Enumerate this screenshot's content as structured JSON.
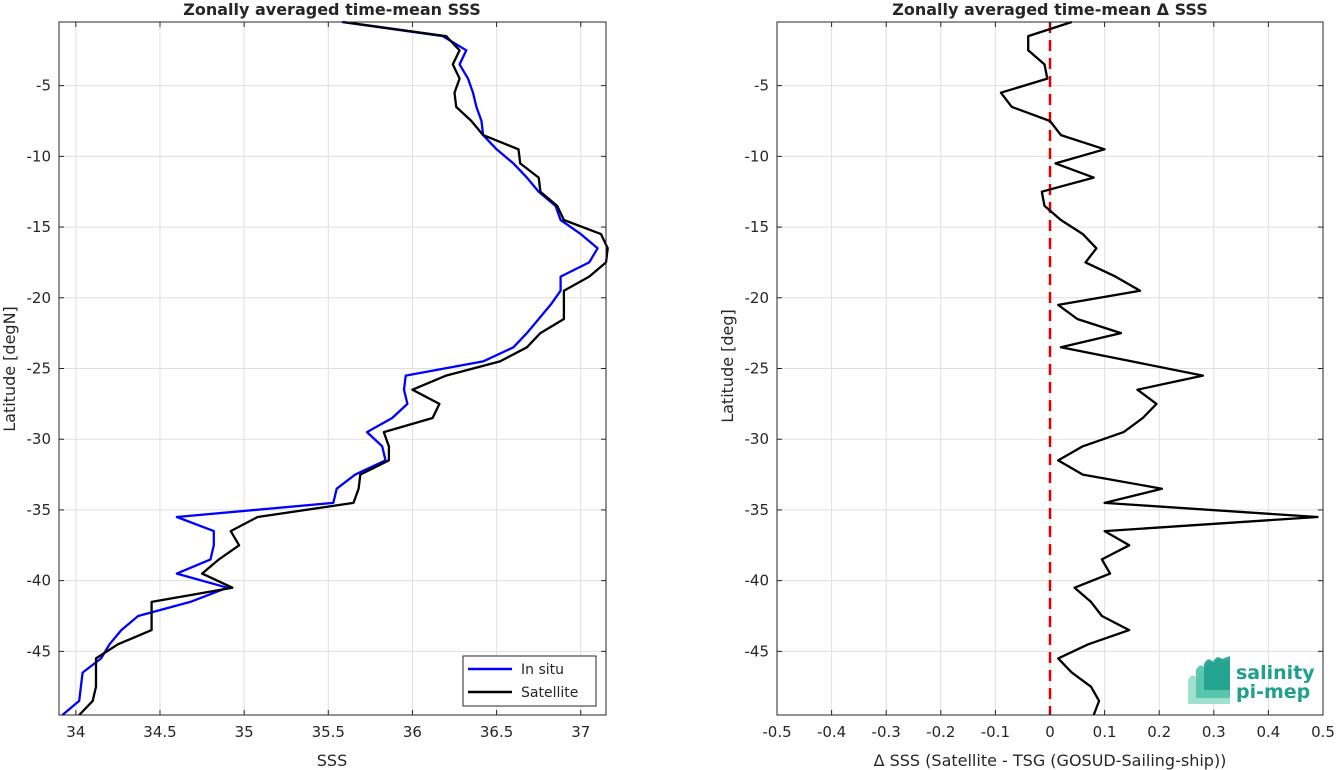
{
  "chart_data": [
    {
      "type": "line",
      "title": "Zonally averaged time-mean SSS",
      "xlabel": "SSS",
      "ylabel": "Latitude [degN]",
      "xlim": [
        33.9,
        37.15
      ],
      "ylim": [
        -49.5,
        -0.5
      ],
      "xticks": [
        34,
        34.5,
        35,
        35.5,
        36,
        36.5,
        37
      ],
      "xticklabels": [
        "34",
        "34.5",
        "35",
        "35.5",
        "36",
        "36.5",
        "37"
      ],
      "yticks": [
        -5,
        -10,
        -15,
        -20,
        -25,
        -30,
        -35,
        -40,
        -45
      ],
      "yticklabels": [
        "-5",
        "-10",
        "-15",
        "-20",
        "-25",
        "-30",
        "-35",
        "-40",
        "-45"
      ],
      "grid": true,
      "legend_position": "bottom-right",
      "series": [
        {
          "name": "In situ",
          "color": "#0000ff",
          "points": [
            [
              35.58,
              -0.5
            ],
            [
              36.18,
              -1.5
            ],
            [
              36.32,
              -2.5
            ],
            [
              36.28,
              -3.5
            ],
            [
              36.33,
              -4.5
            ],
            [
              36.36,
              -5.5
            ],
            [
              36.38,
              -6.5
            ],
            [
              36.41,
              -7.5
            ],
            [
              36.42,
              -8.5
            ],
            [
              36.5,
              -9.5
            ],
            [
              36.6,
              -10.5
            ],
            [
              36.68,
              -11.5
            ],
            [
              36.75,
              -12.5
            ],
            [
              36.85,
              -13.5
            ],
            [
              36.88,
              -14.5
            ],
            [
              37.0,
              -15.5
            ],
            [
              37.1,
              -16.5
            ],
            [
              37.05,
              -17.5
            ],
            [
              36.88,
              -18.5
            ],
            [
              36.88,
              -19.5
            ],
            [
              36.82,
              -20.5
            ],
            [
              36.75,
              -21.5
            ],
            [
              36.68,
              -22.5
            ],
            [
              36.6,
              -23.5
            ],
            [
              36.42,
              -24.5
            ],
            [
              35.96,
              -25.5
            ],
            [
              35.95,
              -26.5
            ],
            [
              35.97,
              -27.5
            ],
            [
              35.88,
              -28.5
            ],
            [
              35.73,
              -29.5
            ],
            [
              35.82,
              -30.5
            ],
            [
              35.84,
              -31.5
            ],
            [
              35.66,
              -32.5
            ],
            [
              35.55,
              -33.5
            ],
            [
              35.53,
              -34.5
            ],
            [
              34.6,
              -35.5
            ],
            [
              34.82,
              -36.5
            ],
            [
              34.82,
              -37.5
            ],
            [
              34.8,
              -38.5
            ],
            [
              34.6,
              -39.5
            ],
            [
              34.9,
              -40.5
            ],
            [
              34.68,
              -41.5
            ],
            [
              34.37,
              -42.5
            ],
            [
              34.27,
              -43.5
            ],
            [
              34.2,
              -44.5
            ],
            [
              34.15,
              -45.5
            ],
            [
              34.04,
              -46.5
            ],
            [
              34.03,
              -47.5
            ],
            [
              34.02,
              -48.5
            ],
            [
              33.92,
              -49.5
            ]
          ]
        },
        {
          "name": "Satellite",
          "color": "#000000",
          "points": [
            [
              35.59,
              -0.5
            ],
            [
              36.2,
              -1.5
            ],
            [
              36.28,
              -2.5
            ],
            [
              36.24,
              -3.5
            ],
            [
              36.28,
              -4.5
            ],
            [
              36.25,
              -5.5
            ],
            [
              36.26,
              -6.5
            ],
            [
              36.35,
              -7.5
            ],
            [
              36.42,
              -8.5
            ],
            [
              36.63,
              -9.5
            ],
            [
              36.64,
              -10.5
            ],
            [
              36.75,
              -11.5
            ],
            [
              36.76,
              -12.5
            ],
            [
              36.86,
              -13.5
            ],
            [
              36.9,
              -14.5
            ],
            [
              37.12,
              -15.5
            ],
            [
              37.16,
              -16.5
            ],
            [
              37.15,
              -17.5
            ],
            [
              37.05,
              -18.5
            ],
            [
              36.9,
              -19.5
            ],
            [
              36.9,
              -20.5
            ],
            [
              36.9,
              -21.5
            ],
            [
              36.76,
              -22.5
            ],
            [
              36.68,
              -23.5
            ],
            [
              36.52,
              -24.5
            ],
            [
              36.2,
              -25.5
            ],
            [
              36.0,
              -26.5
            ],
            [
              36.16,
              -27.5
            ],
            [
              36.12,
              -28.5
            ],
            [
              35.83,
              -29.5
            ],
            [
              35.86,
              -30.5
            ],
            [
              35.86,
              -31.5
            ],
            [
              35.69,
              -32.5
            ],
            [
              35.68,
              -33.5
            ],
            [
              35.65,
              -34.5
            ],
            [
              35.08,
              -35.5
            ],
            [
              34.92,
              -36.5
            ],
            [
              34.97,
              -37.5
            ],
            [
              34.85,
              -38.5
            ],
            [
              34.75,
              -39.5
            ],
            [
              34.93,
              -40.5
            ],
            [
              34.45,
              -41.5
            ],
            [
              34.45,
              -42.5
            ],
            [
              34.45,
              -43.5
            ],
            [
              34.25,
              -44.5
            ],
            [
              34.12,
              -45.5
            ],
            [
              34.12,
              -46.5
            ],
            [
              34.12,
              -47.5
            ],
            [
              34.1,
              -48.5
            ],
            [
              34.02,
              -49.5
            ]
          ]
        }
      ]
    },
    {
      "type": "line",
      "title": "Zonally averaged time-mean Δ SSS",
      "xlabel": "Δ SSS (Satellite - TSG (GOSUD-Sailing-ship))",
      "ylabel": "Latitude [deg]",
      "xlim": [
        -0.5,
        0.5
      ],
      "ylim": [
        -49.5,
        -0.5
      ],
      "xticks": [
        -0.5,
        -0.4,
        -0.3,
        -0.2,
        -0.1,
        0,
        0.1,
        0.2,
        0.3,
        0.4,
        0.5
      ],
      "xticklabels": [
        "-0.5",
        "-0.4",
        "-0.3",
        "-0.2",
        "-0.1",
        "0",
        "0.1",
        "0.2",
        "0.3",
        "0.4",
        "0.5"
      ],
      "yticks": [
        -5,
        -10,
        -15,
        -20,
        -25,
        -30,
        -35,
        -40,
        -45
      ],
      "yticklabels": [
        "-5",
        "-10",
        "-15",
        "-20",
        "-25",
        "-30",
        "-35",
        "-40",
        "-45"
      ],
      "grid": true,
      "reference_line": {
        "x": 0,
        "color": "#e00000",
        "style": "dashed"
      },
      "series": [
        {
          "color": "#000000",
          "points": [
            [
              0.04,
              -0.5
            ],
            [
              -0.04,
              -1.5
            ],
            [
              -0.04,
              -2.5
            ],
            [
              -0.01,
              -3.5
            ],
            [
              -0.005,
              -4.5
            ],
            [
              -0.09,
              -5.5
            ],
            [
              -0.07,
              -6.5
            ],
            [
              0.0,
              -7.5
            ],
            [
              0.02,
              -8.5
            ],
            [
              0.1,
              -9.5
            ],
            [
              0.01,
              -10.5
            ],
            [
              0.08,
              -11.5
            ],
            [
              -0.015,
              -12.5
            ],
            [
              -0.01,
              -13.5
            ],
            [
              0.02,
              -14.5
            ],
            [
              0.06,
              -15.5
            ],
            [
              0.085,
              -16.5
            ],
            [
              0.065,
              -17.5
            ],
            [
              0.12,
              -18.5
            ],
            [
              0.165,
              -19.5
            ],
            [
              0.015,
              -20.5
            ],
            [
              0.05,
              -21.5
            ],
            [
              0.13,
              -22.5
            ],
            [
              0.02,
              -23.5
            ],
            [
              0.15,
              -24.5
            ],
            [
              0.28,
              -25.5
            ],
            [
              0.16,
              -26.5
            ],
            [
              0.195,
              -27.5
            ],
            [
              0.17,
              -28.5
            ],
            [
              0.135,
              -29.5
            ],
            [
              0.06,
              -30.5
            ],
            [
              0.015,
              -31.5
            ],
            [
              0.06,
              -32.5
            ],
            [
              0.205,
              -33.5
            ],
            [
              0.1,
              -34.5
            ],
            [
              0.49,
              -35.5
            ],
            [
              0.1,
              -36.5
            ],
            [
              0.145,
              -37.5
            ],
            [
              0.095,
              -38.5
            ],
            [
              0.11,
              -39.5
            ],
            [
              0.045,
              -40.5
            ],
            [
              0.075,
              -41.5
            ],
            [
              0.095,
              -42.5
            ],
            [
              0.145,
              -43.5
            ],
            [
              0.07,
              -44.5
            ],
            [
              0.015,
              -45.5
            ],
            [
              0.04,
              -46.5
            ],
            [
              0.075,
              -47.5
            ],
            [
              0.09,
              -48.5
            ],
            [
              0.08,
              -49.5
            ]
          ]
        }
      ]
    }
  ],
  "logo": {
    "line1": "salinity",
    "line2": "pi-mep"
  }
}
